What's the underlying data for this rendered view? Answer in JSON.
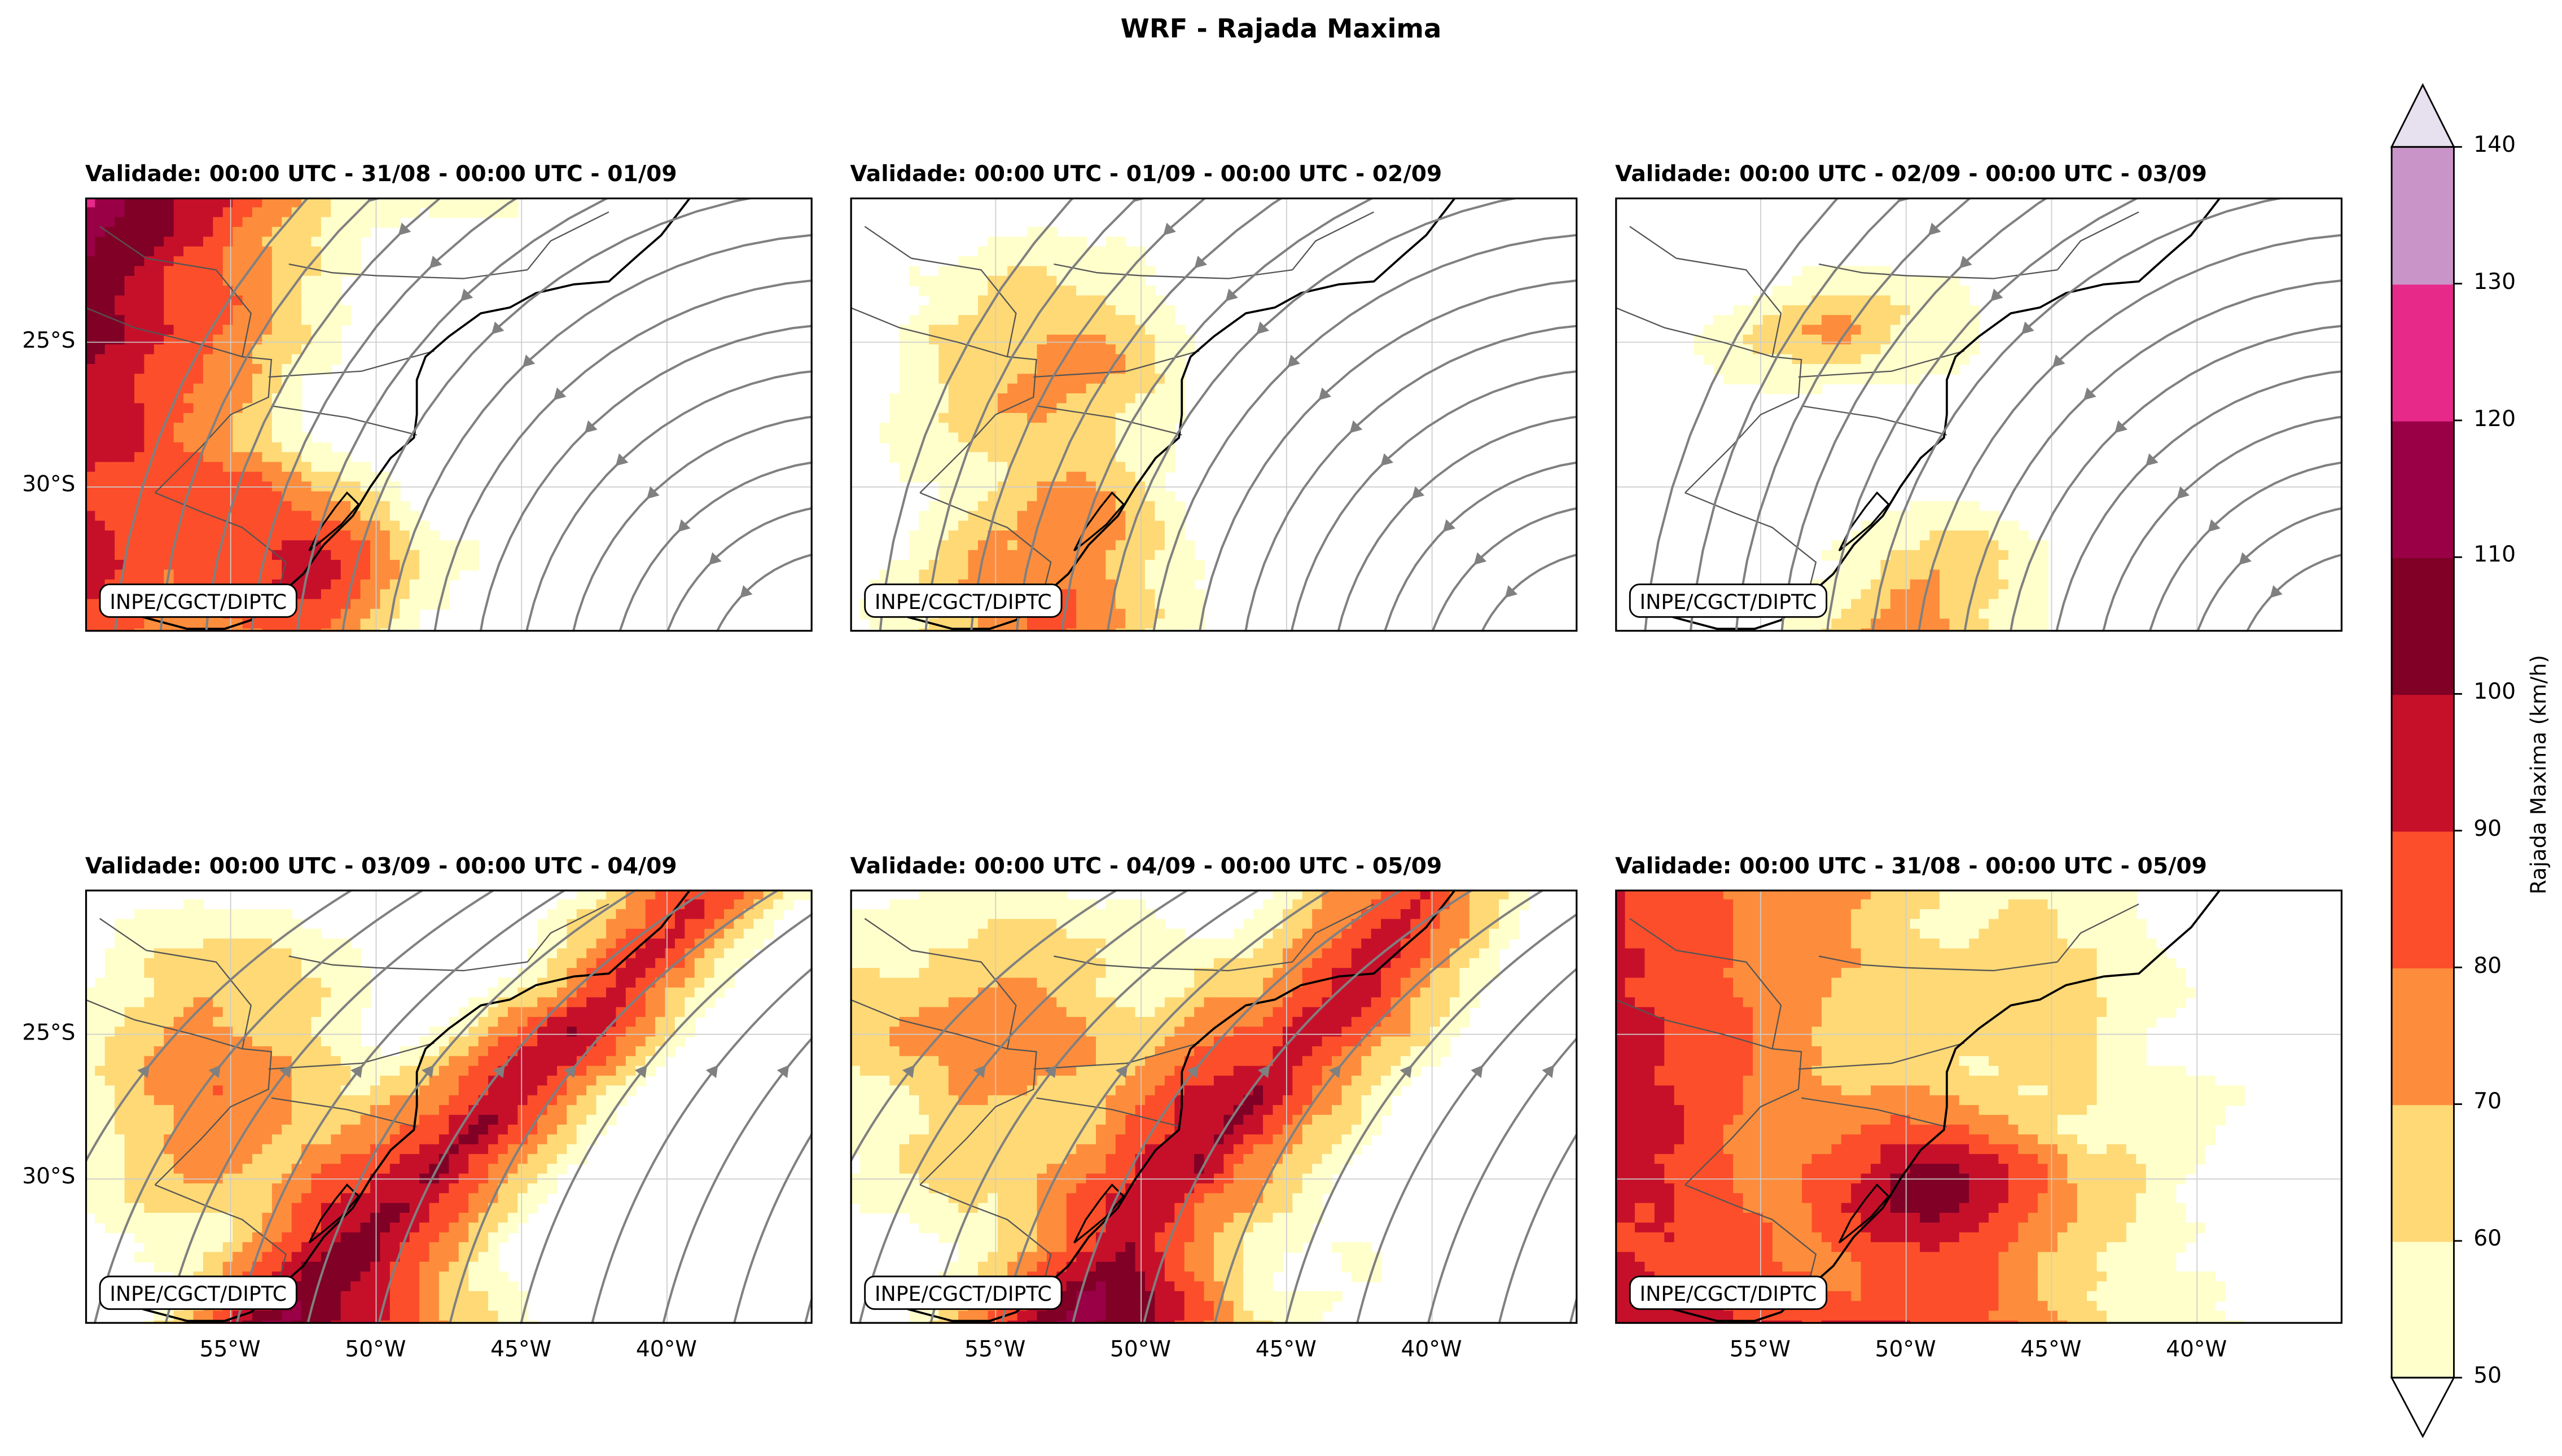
{
  "title": "WRF - Rajada Maxima",
  "credit": "INPE/CGCT/DIPTC",
  "panels": [
    {
      "title": "Validade: 00:00 UTC - 31/08 - 00:00 UTC - 01/09",
      "streamlines": true
    },
    {
      "title": "Validade: 00:00 UTC - 01/09 - 00:00 UTC - 02/09",
      "streamlines": true
    },
    {
      "title": "Validade: 00:00 UTC - 02/09 - 00:00 UTC - 03/09",
      "streamlines": true
    },
    {
      "title": "Validade: 00:00 UTC - 03/09 - 00:00 UTC - 04/09",
      "streamlines": true
    },
    {
      "title": "Validade: 00:00 UTC - 04/09 - 00:00 UTC - 05/09",
      "streamlines": true
    },
    {
      "title": "Validade: 00:00 UTC - 31/08 - 00:00 UTC - 05/09",
      "streamlines": false
    }
  ],
  "lat_ticks": [
    "25°S",
    "30°S"
  ],
  "lon_ticks": [
    "55°W",
    "50°W",
    "45°W",
    "40°W"
  ],
  "colorbar": {
    "label": "Rajada Maxima (km/h)",
    "ticks": [
      "50",
      "60",
      "70",
      "80",
      "90",
      "100",
      "110",
      "120",
      "130",
      "140"
    ],
    "levels": [
      50,
      60,
      70,
      80,
      90,
      100,
      110,
      120,
      130,
      140
    ],
    "colors": [
      "#ffffcc",
      "#fed976",
      "#fd8d3c",
      "#fc4e2a",
      "#c6102a",
      "#800026",
      "#9a0045",
      "#e7298a",
      "#c994c7",
      "#e7e1ef"
    ],
    "extend_colors": {
      "under": "#ffffff",
      "over": "#e7e1ef"
    }
  },
  "map": {
    "lon_range": [
      -60,
      -35
    ],
    "lat_range": [
      -35,
      -20
    ],
    "lat_ticks": [
      -25,
      -30
    ],
    "lon_ticks": [
      -55,
      -50,
      -45,
      -40
    ],
    "streamline_color": "#808080",
    "coast_color": "#000000",
    "border_color": "#555555",
    "grid_color": "#cccccc"
  }
}
